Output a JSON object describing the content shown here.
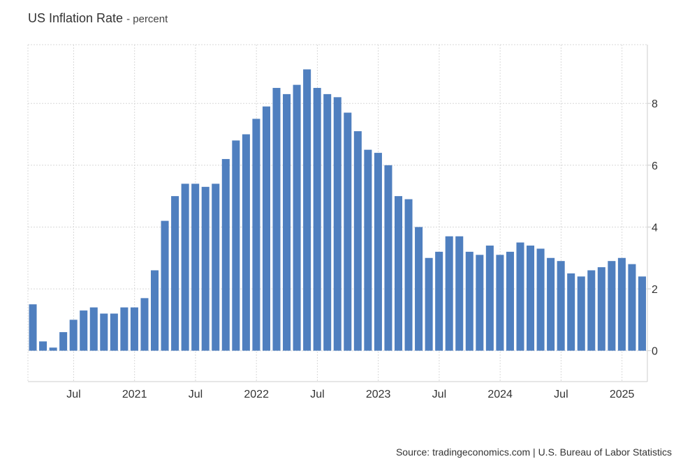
{
  "header": {
    "title": "US Inflation Rate",
    "unit": "- percent"
  },
  "source": "Source: tradingeconomics.com | U.S. Bureau of Labor Statistics",
  "colors": {
    "bar": "#4f7fbf",
    "grid": "#d8d8d8",
    "axis": "#cccccc"
  },
  "chart_data": {
    "type": "bar",
    "title": "US Inflation Rate",
    "ylabel": "percent",
    "ylim": [
      -1,
      9.9
    ],
    "yticks": [
      0,
      2,
      4,
      6,
      8
    ],
    "x_range": [
      "2020-03",
      "2025-03"
    ],
    "xticks": [
      {
        "label": "Jul",
        "date": "2020-07"
      },
      {
        "label": "2021",
        "date": "2021-01"
      },
      {
        "label": "Jul",
        "date": "2021-07"
      },
      {
        "label": "2022",
        "date": "2022-01"
      },
      {
        "label": "Jul",
        "date": "2022-07"
      },
      {
        "label": "2023",
        "date": "2023-01"
      },
      {
        "label": "Jul",
        "date": "2023-07"
      },
      {
        "label": "2024",
        "date": "2024-01"
      },
      {
        "label": "Jul",
        "date": "2024-07"
      },
      {
        "label": "2025",
        "date": "2025-01"
      }
    ],
    "grid": true,
    "categories": [
      "2020-03",
      "2020-04",
      "2020-05",
      "2020-06",
      "2020-07",
      "2020-08",
      "2020-09",
      "2020-10",
      "2020-11",
      "2020-12",
      "2021-01",
      "2021-02",
      "2021-03",
      "2021-04",
      "2021-05",
      "2021-06",
      "2021-07",
      "2021-08",
      "2021-09",
      "2021-10",
      "2021-11",
      "2021-12",
      "2022-01",
      "2022-02",
      "2022-03",
      "2022-04",
      "2022-05",
      "2022-06",
      "2022-07",
      "2022-08",
      "2022-09",
      "2022-10",
      "2022-11",
      "2022-12",
      "2023-01",
      "2023-02",
      "2023-03",
      "2023-04",
      "2023-05",
      "2023-06",
      "2023-07",
      "2023-08",
      "2023-09",
      "2023-10",
      "2023-11",
      "2023-12",
      "2024-01",
      "2024-02",
      "2024-03",
      "2024-04",
      "2024-05",
      "2024-06",
      "2024-07",
      "2024-08",
      "2024-09",
      "2024-10",
      "2024-11",
      "2024-12",
      "2025-01",
      "2025-02",
      "2025-03"
    ],
    "values": [
      1.5,
      0.3,
      0.1,
      0.6,
      1.0,
      1.3,
      1.4,
      1.2,
      1.2,
      1.4,
      1.4,
      1.7,
      2.6,
      4.2,
      5.0,
      5.4,
      5.4,
      5.3,
      5.4,
      6.2,
      6.8,
      7.0,
      7.5,
      7.9,
      8.5,
      8.3,
      8.6,
      9.1,
      8.5,
      8.3,
      8.2,
      7.7,
      7.1,
      6.5,
      6.4,
      6.0,
      5.0,
      4.9,
      4.0,
      3.0,
      3.2,
      3.7,
      3.7,
      3.2,
      3.1,
      3.4,
      3.1,
      3.2,
      3.5,
      3.4,
      3.3,
      3.0,
      2.9,
      2.5,
      2.4,
      2.6,
      2.7,
      2.9,
      3.0,
      2.8,
      2.4
    ]
  }
}
